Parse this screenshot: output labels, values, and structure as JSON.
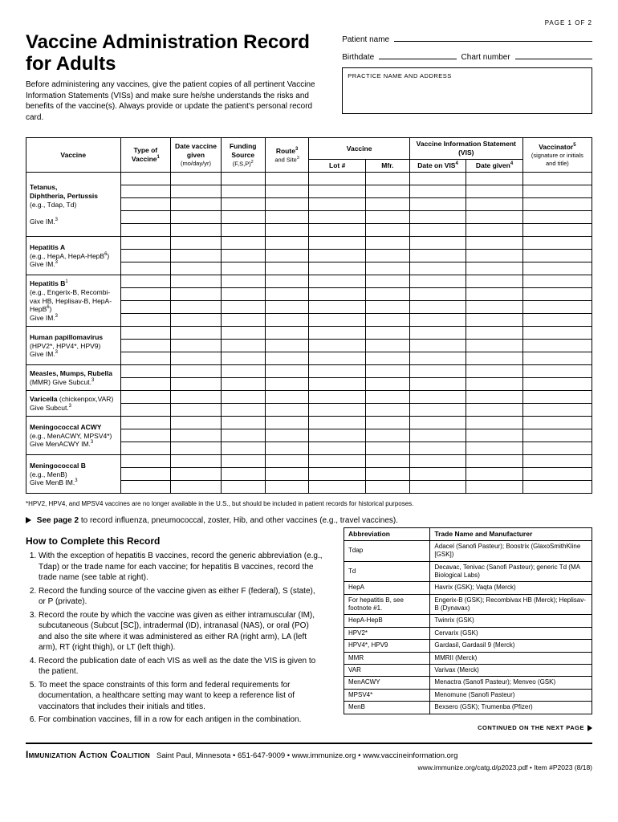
{
  "page_no": "PAGE 1 OF 2",
  "title": "Vaccine Administration Record for Adults",
  "intro": "Before administering any vaccines, give the patient copies of all pertinent Vaccine Information Statements (VISs) and make sure he/she understands the risks and benefits of the vaccine(s). Always provide or update the patient's personal record card.",
  "fields": {
    "patient_name": "Patient name",
    "birthdate": "Birthdate",
    "chart_number": "Chart number",
    "practice_box": "PRACTICE NAME AND ADDRESS"
  },
  "columns": {
    "vaccine": "Vaccine",
    "type": "Type of Vaccine",
    "type_sup": "1",
    "date_given": "Date vaccine given",
    "date_given_sub": "(mo/day/yr)",
    "funding": "Funding Source",
    "funding_sub": "(F,S,P)",
    "funding_sup": "2",
    "route": "Route",
    "route_sup": "3",
    "route_sub": "and Site",
    "route_sub_sup": "3",
    "vaccine2": "Vaccine",
    "lot": "Lot #",
    "mfr": "Mfr.",
    "vis": "Vaccine Information Statement (VIS)",
    "vis_date": "Date on VIS",
    "vis_date_sup": "4",
    "vis_given": "Date given",
    "vis_given_sup": "4",
    "vaccinator": "Vaccinator",
    "vaccinator_sup": "5",
    "vaccinator_sub": "(signature or initials and title)"
  },
  "vaccine_rows": [
    {
      "label": "<strong>Tetanus,<br>Diphtheria, Pertussis</strong><br>(e.g., Tdap, Td)<br><br>Give IM.<span class='sup'>3</span>",
      "rows": 5
    },
    {
      "label": "<strong>Hepatitis A</strong><br>(e.g., HepA, HepA-HepB<span class='sup'>6</span>)<br>Give IM.<span class='sup'>3</span>",
      "rows": 3
    },
    {
      "label": "<strong>Hepatitis B</strong><span class='sup'>1</span><br>(e.g., Engerix-B, Recombi-<br>vax HB, Heplisav-B, HepA-HepB<span class='sup'>6</span>)<br>Give IM.<span class='sup'>3</span>",
      "rows": 4
    },
    {
      "label": "<strong>Human papillomavirus</strong><br>(HPV2*, HPV4*, HPV9)<br>Give IM.<span class='sup'>3</span>",
      "rows": 3
    },
    {
      "label": "<strong>Measles, Mumps, Rubella</strong><br>(MMR) Give Subcut.<span class='sup'>3</span>",
      "rows": 2
    },
    {
      "label": "<strong>Varicella</strong> (chickenpox,VAR)<br>Give Subcut.<span class='sup'>3</span>",
      "rows": 2
    },
    {
      "label": "<strong>Meningococcal ACWY</strong><br>(e.g., MenACWY, MPSV4*)<br>Give MenACWY IM.<span class='sup'>3</span>",
      "rows": 3
    },
    {
      "label": "<strong>Meningococcal B</strong><br>(e.g., MenB)<br>Give MenB IM.<span class='sup'>3</span>",
      "rows": 3
    }
  ],
  "star_note": "*HPV2, HPV4, and MPSV4 vaccines are no longer available in the U.S., but should be included in patient records for historical purposes.",
  "see_page_bold": "See page 2",
  "see_page_rest": " to record influenza, pneumococcal, zoster, Hib, and other vaccines (e.g., travel vaccines).",
  "howto_title": "How to Complete this Record",
  "steps": [
    "With the exception of hepatitis B vaccines, record the generic abbreviation (e.g., Tdap) or the trade name for each vaccine; for hepatitis B vaccines, record the trade name (see table at right).",
    "Record the funding source of the vaccine given as either F (federal), S (state), or P (private).",
    "Record the route by which the vaccine was given as either intramuscular (IM), subcutaneous (Subcut [SC]), intradermal (ID), intranasal (NAS), or oral (PO) and also the site where it was administered as either RA (right arm), LA (left arm), RT (right thigh), or LT (left thigh).",
    "Record the publication date of each VIS as well as the date the VIS is given to the patient.",
    "To meet the space constraints of this form and federal requirements for documentation, a healthcare setting may want to keep a reference list of vaccinators that includes their initials and titles.",
    "For combination vaccines, fill in a row for each antigen in the combination."
  ],
  "abbr": {
    "headers": [
      "Abbreviation",
      "Trade Name and Manufacturer"
    ],
    "rows": [
      [
        "Tdap",
        "Adacel (Sanofi Pasteur); Boostrix (GlaxoSmithKline [GSK])"
      ],
      [
        "Td",
        "Decavac, Tenivac (Sanofi Pasteur); generic Td (MA Biological Labs)"
      ],
      [
        "HepA",
        "Havrix (GSK); Vaqta (Merck)"
      ],
      [
        "For hepatitis B, see footnote #1.",
        "Engerix-B (GSK); Recombivax HB (Merck); Heplisav-B (Dynavax)"
      ],
      [
        "HepA-HepB",
        "Twinrix (GSK)"
      ],
      [
        "HPV2*",
        "Cervarix (GSK)"
      ],
      [
        "HPV4*, HPV9",
        "Gardasil, Gardasil 9 (Merck)"
      ],
      [
        "MMR",
        "MMRII (Merck)"
      ],
      [
        "VAR",
        "Varivax (Merck)"
      ],
      [
        "MenACWY",
        "Menactra (Sanofi Pasteur); Menveo (GSK)"
      ],
      [
        "MPSV4*",
        "Menomune (Sanofi Pasteur)"
      ],
      [
        "MenB",
        "Bexsero (GSK); Trumenba (Pfizer)"
      ]
    ]
  },
  "continued": "CONTINUED ON THE NEXT PAGE",
  "footer": {
    "org": "Immunization Action Coalition",
    "loc": "Saint Paul, Minnesota • 651-647-9009 • www.immunize.org • www.vaccineinformation.org",
    "sub": "www.immunize.org/catg.d/p2023.pdf • Item #P2023 (8/18)"
  },
  "col_widths": {
    "vaccine": "15%",
    "type": "8%",
    "date": "8%",
    "funding": "7%",
    "route": "7%",
    "lot": "9%",
    "mfr": "7%",
    "vis_date": "9%",
    "vis_given": "9%",
    "vaccinator": "11%"
  }
}
